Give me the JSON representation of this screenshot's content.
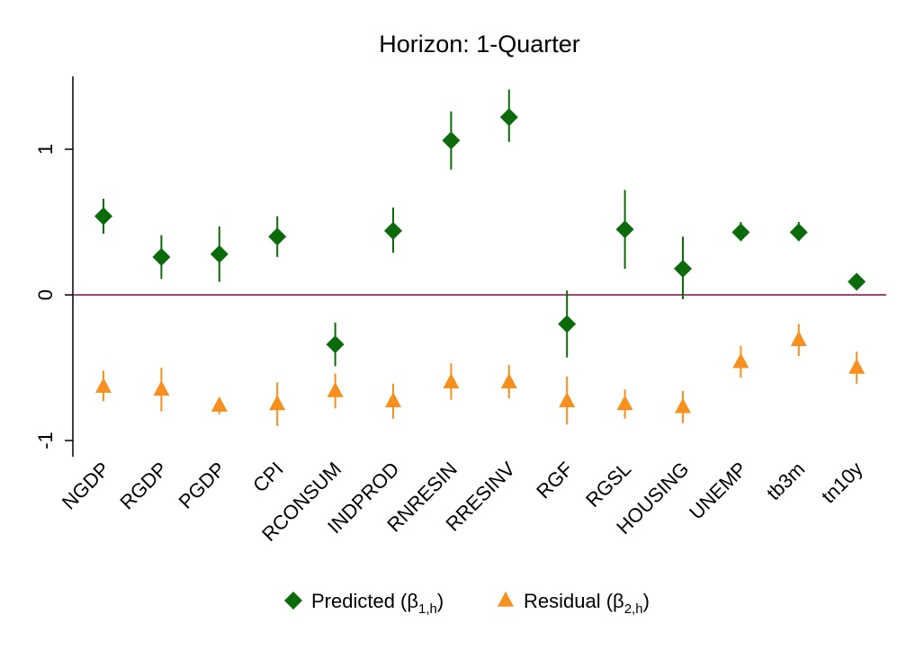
{
  "chart_data": {
    "type": "scatter",
    "title": "Horizon: 1-Quarter",
    "xlabel": "",
    "ylabel": "",
    "categories": [
      "NGDP",
      "RGDP",
      "PGDP",
      "CPI",
      "RCONSUM",
      "INDPROD",
      "RNRESIN",
      "RRESINV",
      "RGF",
      "RGSL",
      "HOUSING",
      "UNEMP",
      "tb3m",
      "tn10y"
    ],
    "ylim": [
      -1.1,
      1.55
    ],
    "yticks": [
      -1,
      0,
      1
    ],
    "reference_line": 0,
    "grid": false,
    "legend_position": "bottom",
    "series": [
      {
        "name": "Predicted (β1,h)",
        "legend_main": "Predicted (β",
        "legend_sub": "1,h",
        "legend_close": ")",
        "marker": "diamond",
        "color": "#0b6b0b",
        "values": [
          0.54,
          0.26,
          0.28,
          0.4,
          -0.34,
          0.44,
          1.06,
          1.22,
          -0.2,
          0.45,
          0.18,
          0.43,
          0.43,
          0.09
        ],
        "ci_low": [
          0.42,
          0.11,
          0.09,
          0.26,
          -0.49,
          0.29,
          0.86,
          1.05,
          -0.43,
          0.18,
          -0.03,
          0.37,
          0.37,
          0.09
        ],
        "ci_high": [
          0.66,
          0.41,
          0.47,
          0.54,
          -0.19,
          0.6,
          1.26,
          1.41,
          0.03,
          0.72,
          0.4,
          0.5,
          0.5,
          0.09
        ]
      },
      {
        "name": "Residual (β2,h)",
        "legend_main": "Residual (β",
        "legend_sub": "2,h",
        "legend_close": ")",
        "marker": "triangle",
        "color": "#f7901e",
        "values": [
          -0.63,
          -0.65,
          -0.76,
          -0.75,
          -0.66,
          -0.73,
          -0.6,
          -0.6,
          -0.73,
          -0.75,
          -0.77,
          -0.46,
          -0.31,
          -0.5
        ],
        "ci_low": [
          -0.73,
          -0.8,
          -0.82,
          -0.9,
          -0.78,
          -0.85,
          -0.72,
          -0.71,
          -0.89,
          -0.85,
          -0.88,
          -0.57,
          -0.42,
          -0.61
        ],
        "ci_high": [
          -0.52,
          -0.5,
          -0.71,
          -0.6,
          -0.54,
          -0.61,
          -0.47,
          -0.48,
          -0.56,
          -0.65,
          -0.66,
          -0.35,
          -0.2,
          -0.39
        ]
      }
    ],
    "colors": {
      "zero_line": "#990044",
      "axis": "#000000"
    }
  }
}
